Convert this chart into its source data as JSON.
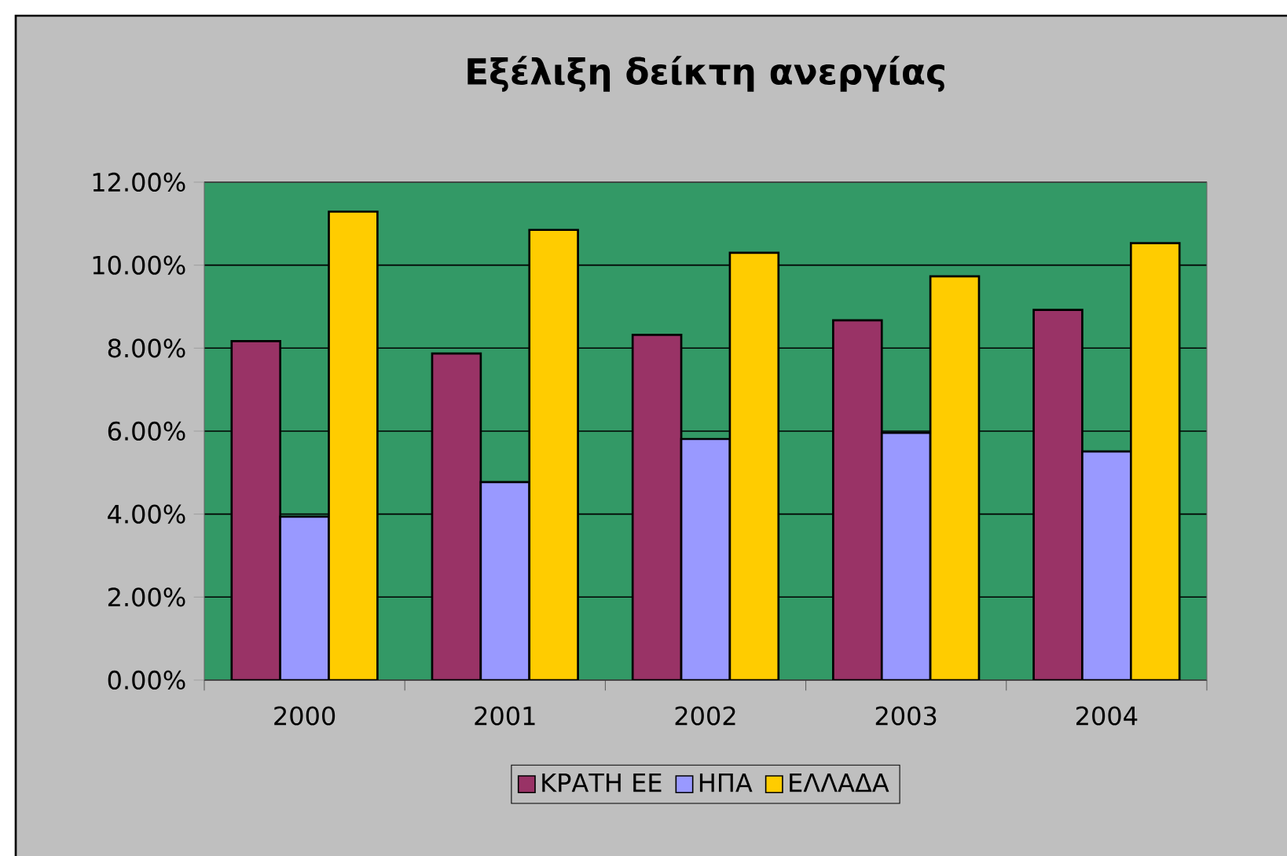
{
  "chart_data": {
    "type": "bar",
    "title": "Εξέλιξη δείκτη ανεργίας",
    "categories": [
      "2000",
      "2001",
      "2002",
      "2003",
      "2004"
    ],
    "series": [
      {
        "name": "ΚΡΑΤΗ ΕΕ",
        "color": "#993366",
        "values": [
          8.17,
          7.87,
          8.32,
          8.67,
          8.92
        ]
      },
      {
        "name": "ΗΠΑ",
        "color": "#9999ff",
        "values": [
          3.94,
          4.77,
          5.81,
          5.96,
          5.51
        ]
      },
      {
        "name": "ΕΛΛΑΔΑ",
        "color": "#ffcc00",
        "values": [
          11.29,
          10.85,
          10.3,
          9.73,
          10.53
        ]
      }
    ],
    "ylim": [
      0,
      12
    ],
    "yticks": [
      {
        "value": 0,
        "label": "0.00%"
      },
      {
        "value": 2,
        "label": "2.00%"
      },
      {
        "value": 4,
        "label": "4.00%"
      },
      {
        "value": 6,
        "label": "6.00%"
      },
      {
        "value": 8,
        "label": "8.00%"
      },
      {
        "value": 10,
        "label": "10.00%"
      },
      {
        "value": 12,
        "label": "12.00%"
      }
    ],
    "grid": "y",
    "legend": "bottom"
  }
}
